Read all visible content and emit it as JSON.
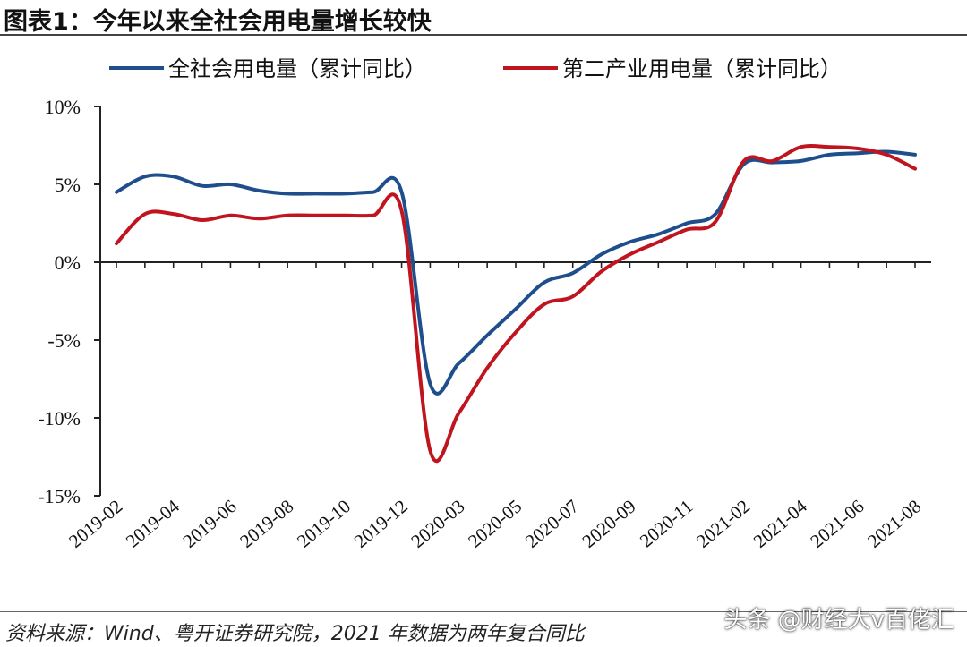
{
  "header": {
    "title": "图表1：今年以来全社会用电量增长较快"
  },
  "footer": {
    "source": "资料来源：Wind、粤开证券研究院，2021 年数据为两年复合同比",
    "watermark": "头条 @财经大v百佬汇"
  },
  "colors": {
    "series_total": "#1f4e8c",
    "series_secondary": "#c0141f",
    "axis": "#222222"
  },
  "chart_data": {
    "type": "line",
    "title": "",
    "xlabel": "",
    "ylabel": "",
    "ylim": [
      -15,
      10
    ],
    "y_ticks": [
      10,
      5,
      0,
      -5,
      -10,
      -15
    ],
    "y_tick_labels": [
      "10%",
      "5%",
      "0%",
      "-5%",
      "-10%",
      "-15%"
    ],
    "grid": false,
    "legend_position": "top",
    "categories": [
      "2019-02",
      "2019-03",
      "2019-04",
      "2019-05",
      "2019-06",
      "2019-07",
      "2019-08",
      "2019-09",
      "2019-10",
      "2019-11",
      "2019-12",
      "2020-02",
      "2020-03",
      "2020-04",
      "2020-05",
      "2020-06",
      "2020-07",
      "2020-08",
      "2020-09",
      "2020-10",
      "2020-11",
      "2020-12",
      "2021-02",
      "2021-03",
      "2021-04",
      "2021-05",
      "2021-06",
      "2021-07",
      "2021-08"
    ],
    "x_tick_labels": [
      "2019-02",
      "2019-04",
      "2019-06",
      "2019-08",
      "2019-10",
      "2019-12",
      "2020-03",
      "2020-05",
      "2020-07",
      "2020-09",
      "2020-11",
      "2021-02",
      "2021-04",
      "2021-06",
      "2021-08"
    ],
    "series": [
      {
        "name": "全社会用电量（累计同比）",
        "color": "#1f4e8c",
        "values": [
          4.5,
          5.5,
          5.5,
          4.9,
          5.0,
          4.6,
          4.4,
          4.4,
          4.4,
          4.5,
          4.5,
          -7.8,
          -6.5,
          -4.7,
          -3.0,
          -1.3,
          -0.7,
          0.5,
          1.3,
          1.8,
          2.5,
          3.1,
          6.3,
          6.4,
          6.5,
          6.9,
          7.0,
          7.1,
          6.9
        ]
      },
      {
        "name": "第二产业用电量（累计同比）",
        "color": "#c0141f",
        "values": [
          1.2,
          3.1,
          3.1,
          2.7,
          3.0,
          2.8,
          3.0,
          3.0,
          3.0,
          3.0,
          3.3,
          -12.1,
          -9.7,
          -6.8,
          -4.5,
          -2.7,
          -2.2,
          -0.6,
          0.5,
          1.3,
          2.1,
          2.6,
          6.5,
          6.5,
          7.4,
          7.4,
          7.3,
          6.9,
          6.0
        ]
      }
    ]
  }
}
